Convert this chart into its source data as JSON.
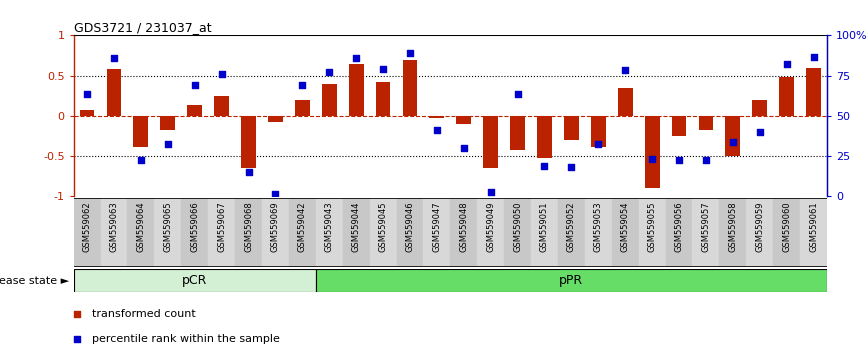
{
  "title": "GDS3721 / 231037_at",
  "samples": [
    "GSM559062",
    "GSM559063",
    "GSM559064",
    "GSM559065",
    "GSM559066",
    "GSM559067",
    "GSM559068",
    "GSM559069",
    "GSM559042",
    "GSM559043",
    "GSM559044",
    "GSM559045",
    "GSM559046",
    "GSM559047",
    "GSM559048",
    "GSM559049",
    "GSM559050",
    "GSM559051",
    "GSM559052",
    "GSM559053",
    "GSM559054",
    "GSM559055",
    "GSM559056",
    "GSM559057",
    "GSM559058",
    "GSM559059",
    "GSM559060",
    "GSM559061"
  ],
  "bar_values": [
    0.07,
    0.58,
    -0.38,
    -0.18,
    0.13,
    0.25,
    -0.65,
    -0.07,
    0.2,
    0.4,
    0.65,
    0.42,
    0.7,
    -0.03,
    -0.1,
    -0.65,
    -0.42,
    -0.52,
    -0.3,
    -0.38,
    0.35,
    -0.9,
    -0.25,
    -0.18,
    -0.5,
    0.2,
    0.48,
    0.6
  ],
  "dot_values": [
    0.27,
    0.72,
    -0.55,
    -0.35,
    0.38,
    0.52,
    -0.7,
    -0.97,
    0.38,
    0.55,
    0.72,
    0.58,
    0.78,
    -0.18,
    -0.4,
    -0.95,
    0.27,
    -0.62,
    -0.63,
    -0.35,
    0.57,
    -0.53,
    -0.55,
    -0.55,
    -0.32,
    -0.2,
    0.65,
    0.73
  ],
  "group_labels": [
    "pCR",
    "pPR"
  ],
  "pcr_count": 9,
  "group_colors": [
    "#d4f0d4",
    "#66dd66"
  ],
  "bar_color": "#bb2200",
  "dot_color": "#0000cc",
  "bar_width": 0.55,
  "ylim": [
    -1.0,
    1.0
  ],
  "yticks_left": [
    -1,
    -0.5,
    0,
    0.5,
    1
  ],
  "ytick_labels_left": [
    "-1",
    "-0.5",
    "0",
    "0.5",
    "1"
  ],
  "ytick_labels_right": [
    "0",
    "25",
    "50",
    "75",
    "100%"
  ],
  "hline_dotted": [
    -0.5,
    0.5
  ],
  "hline_red": [
    0.0
  ],
  "legend_items": [
    "transformed count",
    "percentile rank within the sample"
  ],
  "legend_colors": [
    "#bb2200",
    "#0000cc"
  ],
  "disease_state_label": "disease state",
  "col_bg_dark": "#c8c8c8",
  "col_bg_light": "#d8d8d8"
}
